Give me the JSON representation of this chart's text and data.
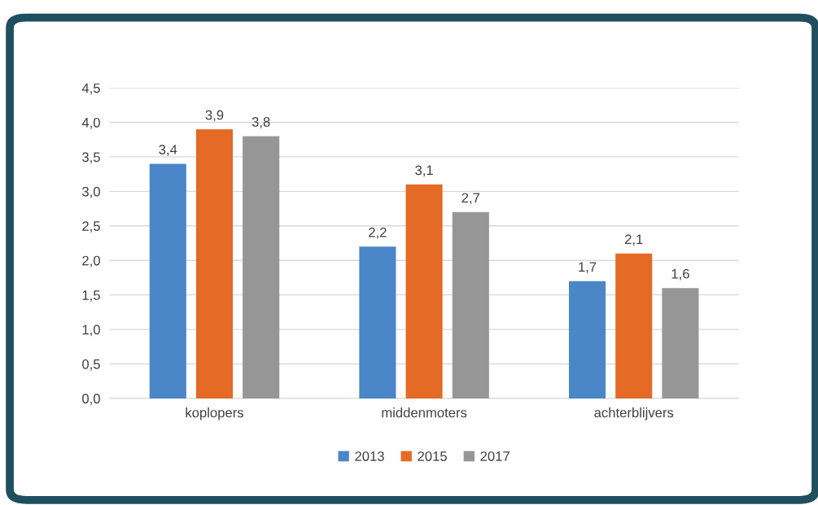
{
  "chart_data": {
    "type": "bar",
    "categories": [
      "koplopers",
      "middenmoters",
      "achterblijvers"
    ],
    "series": [
      {
        "name": "2013",
        "color": "#4a86c8",
        "values": [
          3.4,
          2.2,
          1.7
        ],
        "value_labels": [
          "3,4",
          "2,2",
          "1,7"
        ]
      },
      {
        "name": "2015",
        "color": "#e56a26",
        "values": [
          3.9,
          3.1,
          2.1
        ],
        "value_labels": [
          "3,9",
          "3,1",
          "2,1"
        ]
      },
      {
        "name": "2017",
        "color": "#969696",
        "values": [
          3.8,
          2.7,
          1.6
        ],
        "value_labels": [
          "3,8",
          "2,7",
          "1,6"
        ]
      }
    ],
    "ylim": [
      0,
      4.5
    ],
    "yticks": [
      {
        "value": 0,
        "label": "0,0"
      },
      {
        "value": 0.5,
        "label": "0,5"
      },
      {
        "value": 1,
        "label": "1,0"
      },
      {
        "value": 1.5,
        "label": "1,5"
      },
      {
        "value": 2,
        "label": "2,0"
      },
      {
        "value": 2.5,
        "label": "2,5"
      },
      {
        "value": 3,
        "label": "3,0"
      },
      {
        "value": 3.5,
        "label": "3,5"
      },
      {
        "value": 4,
        "label": "4,0"
      },
      {
        "value": 4.5,
        "label": "4,5"
      }
    ],
    "grid": "y",
    "legend": "bottom"
  }
}
